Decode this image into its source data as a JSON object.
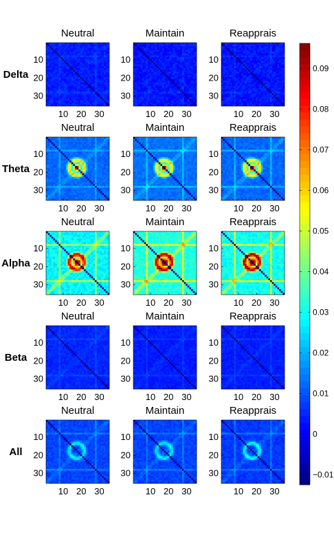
{
  "chart_data": {
    "type": "heatmap",
    "description_rows": [
      "Delta",
      "Theta",
      "Alpha",
      "Beta",
      "All"
    ],
    "columns": [
      "Neutral",
      "Maintain",
      "Reapprais"
    ],
    "matrix_size": 35,
    "axis_ticks": [
      "10",
      "20",
      "30"
    ],
    "axis_tick_values": [
      10,
      20,
      30
    ],
    "colorbar": {
      "colormap": "jet",
      "range": [
        -0.0125,
        0.0962
      ],
      "ticks": [
        -0.01,
        0,
        0.01,
        0.02,
        0.03,
        0.04,
        0.05,
        0.06,
        0.07,
        0.08,
        0.09
      ],
      "tick_labels": [
        "−0.01",
        "0",
        "0.01",
        "0.02",
        "0.03",
        "0.04",
        "0.05",
        "0.06",
        "0.07",
        "0.08",
        "0.09"
      ]
    },
    "panels": [
      {
        "row": "Delta",
        "col": "Neutral",
        "background": 0.004,
        "noise": 0.006,
        "center_peak": 0.0,
        "ring": 0.0,
        "band": 0.002
      },
      {
        "row": "Delta",
        "col": "Maintain",
        "background": 0.003,
        "noise": 0.007,
        "center_peak": 0.0,
        "ring": 0.0,
        "band": 0.002
      },
      {
        "row": "Delta",
        "col": "Reapprais",
        "background": 0.003,
        "noise": 0.007,
        "center_peak": 0.0,
        "ring": 0.0,
        "band": 0.002
      },
      {
        "row": "Theta",
        "col": "Neutral",
        "background": 0.012,
        "noise": 0.005,
        "center_peak": 0.085,
        "ring": 0.05,
        "band": 0.006
      },
      {
        "row": "Theta",
        "col": "Maintain",
        "background": 0.013,
        "noise": 0.005,
        "center_peak": 0.092,
        "ring": 0.045,
        "band": 0.008
      },
      {
        "row": "Theta",
        "col": "Reapprais",
        "background": 0.012,
        "noise": 0.005,
        "center_peak": 0.095,
        "ring": 0.05,
        "band": 0.008
      },
      {
        "row": "Alpha",
        "col": "Neutral",
        "background": 0.028,
        "noise": 0.009,
        "center_peak": 0.08,
        "ring": 0.06,
        "band": 0.018
      },
      {
        "row": "Alpha",
        "col": "Maintain",
        "background": 0.032,
        "noise": 0.009,
        "center_peak": 0.085,
        "ring": 0.06,
        "band": 0.02
      },
      {
        "row": "Alpha",
        "col": "Reapprais",
        "background": 0.03,
        "noise": 0.009,
        "center_peak": 0.09,
        "ring": 0.065,
        "band": 0.02
      },
      {
        "row": "Beta",
        "col": "Neutral",
        "background": 0.005,
        "noise": 0.004,
        "center_peak": 0.0,
        "ring": 0.0,
        "band": 0.003
      },
      {
        "row": "Beta",
        "col": "Maintain",
        "background": 0.004,
        "noise": 0.004,
        "center_peak": 0.0,
        "ring": 0.0,
        "band": 0.003
      },
      {
        "row": "Beta",
        "col": "Reapprais",
        "background": 0.004,
        "noise": 0.004,
        "center_peak": 0.0,
        "ring": 0.0,
        "band": 0.003
      },
      {
        "row": "All",
        "col": "Neutral",
        "background": 0.008,
        "noise": 0.005,
        "center_peak": 0.0,
        "ring": 0.02,
        "band": 0.006
      },
      {
        "row": "All",
        "col": "Maintain",
        "background": 0.008,
        "noise": 0.005,
        "center_peak": 0.0,
        "ring": 0.02,
        "band": 0.006
      },
      {
        "row": "All",
        "col": "Reapprais",
        "background": 0.007,
        "noise": 0.005,
        "center_peak": 0.0,
        "ring": 0.022,
        "band": 0.006
      }
    ]
  }
}
